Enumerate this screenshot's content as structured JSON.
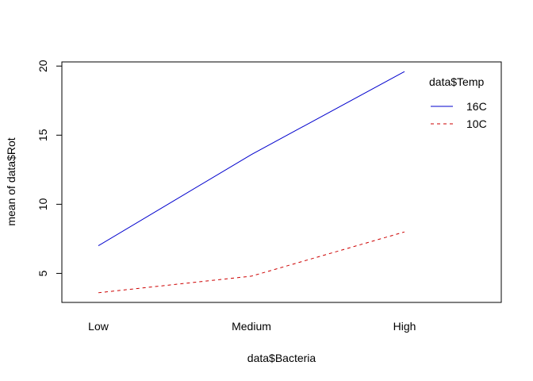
{
  "chart_data": {
    "type": "line",
    "title": "",
    "xlabel": "data$Bacteria",
    "ylabel": "mean of  data$Rot",
    "categories": [
      "Low",
      "Medium",
      "High"
    ],
    "ylim": [
      2.9,
      20.3
    ],
    "yticks": [
      5,
      10,
      15,
      20
    ],
    "grid": false,
    "legend": {
      "title": "data$Temp",
      "placement": "top-right"
    },
    "series": [
      {
        "name": "16C",
        "values": [
          7.0,
          13.6,
          19.6
        ],
        "color": "#0000cd",
        "linestyle": "solid"
      },
      {
        "name": "10C",
        "values": [
          3.6,
          4.8,
          8.0
        ],
        "color": "#cd0000",
        "linestyle": "dashed"
      }
    ]
  }
}
